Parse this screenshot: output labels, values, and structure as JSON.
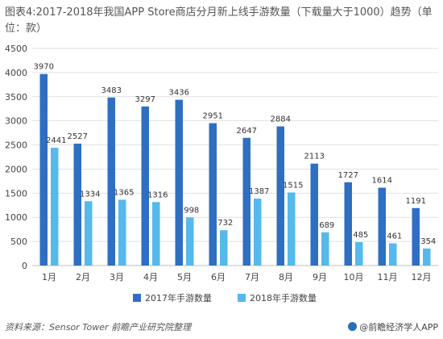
{
  "title": "图表4:2017-2018年我国APP Store商店分月新上线手游数量（下载量大于1000）趋势（单位：款）",
  "source": "资料来源：Sensor Tower 前瞻产业研究院整理",
  "brand": "@前瞻经济学人APP",
  "colors": {
    "series_2017": "#2e6fc2",
    "series_2018": "#55b9ec",
    "grid": "#e1e1e1",
    "axis_text": "#444444",
    "label_text": "#333333"
  },
  "chart_data": {
    "type": "bar",
    "title": "图表4:2017-2018年我国APP Store商店分月新上线手游数量（下载量大于1000）趋势（单位：款）",
    "xlabel": "",
    "ylabel": "",
    "categories": [
      "1月",
      "2月",
      "3月",
      "4月",
      "5月",
      "6月",
      "7月",
      "8月",
      "9月",
      "10月",
      "11月",
      "12月"
    ],
    "series": [
      {
        "name": "2017年手游数量",
        "values": [
          3970,
          2527,
          3483,
          3297,
          3436,
          2951,
          2647,
          2884,
          2113,
          1727,
          1614,
          1191
        ]
      },
      {
        "name": "2018年手游数量",
        "values": [
          2441,
          1334,
          1365,
          1316,
          998,
          732,
          1387,
          1515,
          689,
          485,
          461,
          354
        ]
      }
    ],
    "ylim": [
      0,
      4500
    ],
    "yticks": [
      0,
      500,
      1000,
      1500,
      2000,
      2500,
      3000,
      3500,
      4000,
      4500
    ],
    "grid": true,
    "legend_position": "bottom"
  }
}
